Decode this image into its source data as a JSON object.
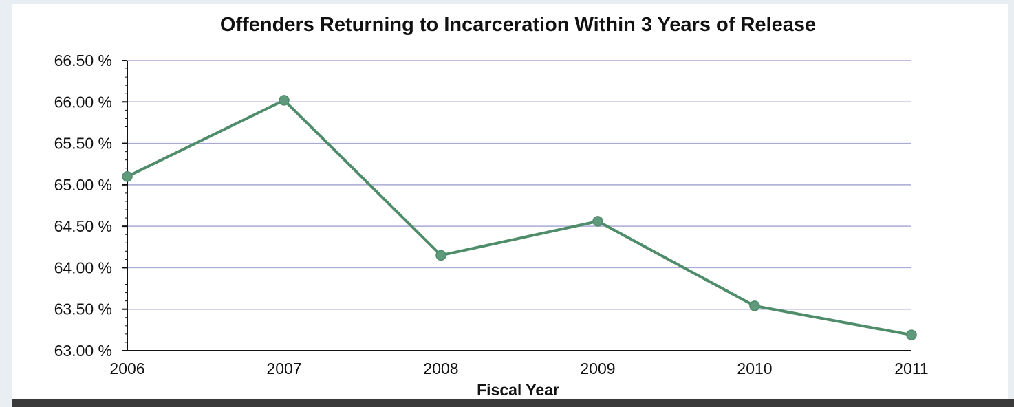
{
  "chart_data": {
    "type": "line",
    "title": "Offenders Returning to Incarceration Within 3 Years of Release",
    "xlabel": "Fiscal Year",
    "ylabel": "",
    "categories": [
      "2006",
      "2007",
      "2008",
      "2009",
      "2010",
      "2011"
    ],
    "series": [
      {
        "values": [
          65.1,
          66.02,
          64.15,
          64.56,
          63.54,
          63.19
        ]
      }
    ],
    "ylim": [
      63.0,
      66.5
    ],
    "yticks": [
      63.0,
      63.5,
      64.0,
      64.5,
      65.0,
      65.5,
      66.0,
      66.5
    ],
    "ytick_labels": [
      "63.00 %",
      "63.50 %",
      "64.00 %",
      "64.50 %",
      "65.00 %",
      "65.50 %",
      "66.00 %",
      "66.50 %"
    ],
    "grid": true,
    "legend": "none",
    "colors": {
      "line": "#4e8c6a",
      "marker": "#5f9a7c",
      "grid": "#a9a9d6",
      "axis": "#111111"
    }
  }
}
